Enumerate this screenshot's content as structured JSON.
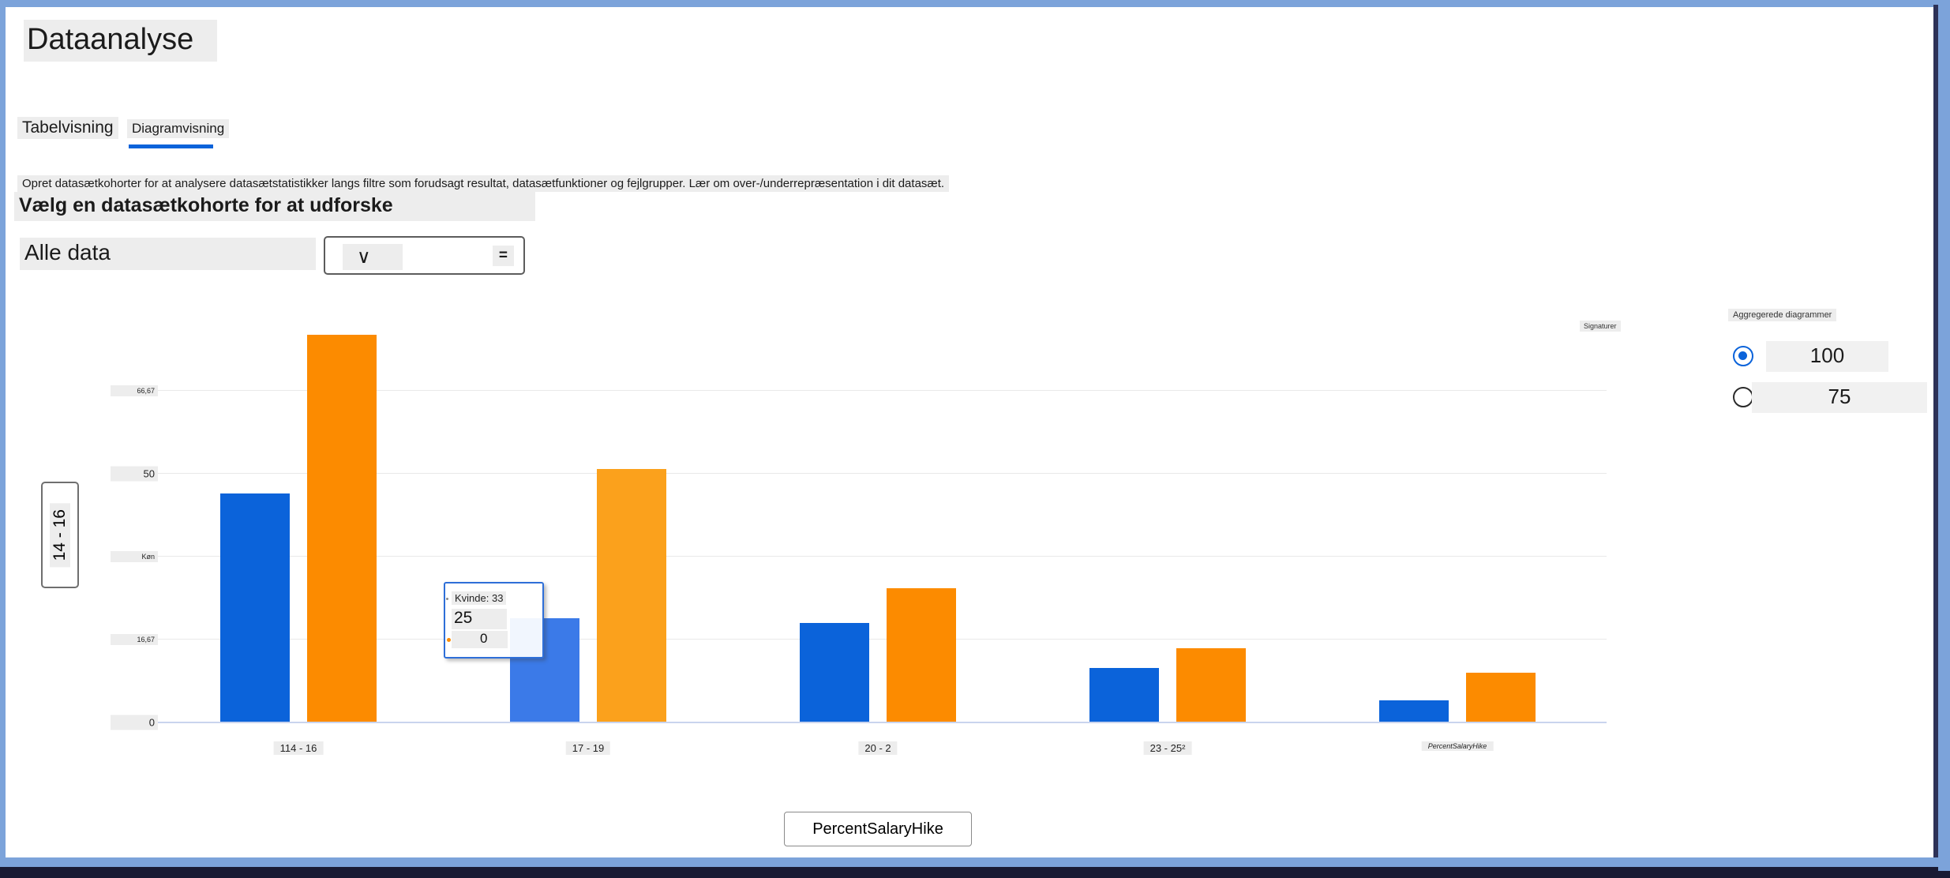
{
  "title": "Dataanalyse",
  "tabs": [
    {
      "label": "Tabelvisning",
      "active": false
    },
    {
      "label": "Diagramvisning",
      "active": true
    }
  ],
  "description": "Opret datasætkohorter for at analysere datasætstatistikker langs filtre som forudsagt resultat, datasætfunktioner og fejlgrupper. Lær om over-/underrepræsentation i dit datasæt.",
  "subtitle": "Vælg en datasætkohorte for at udforske",
  "cohort": {
    "selected": "Alle data",
    "chevron": "∨",
    "filter_icon": "="
  },
  "legend_label": "Signaturer",
  "tooltip": {
    "header": "Kvinde: 33",
    "value": "25",
    "secondary": "0"
  },
  "axis_buttons": {
    "y": "14 - 16",
    "x": "PercentSalaryHike"
  },
  "right_panel": {
    "title": "Aggregerede diagrammer",
    "options": [
      {
        "label": "100",
        "selected": true
      },
      {
        "label": "75",
        "selected": false
      }
    ]
  },
  "chart_data": {
    "type": "bar",
    "categories": [
      "114 - 16",
      "17 - 19",
      "20 - 2",
      "23 - 25²",
      "PercentSalaryHike"
    ],
    "series": [
      {
        "name": "series-blue",
        "color": "#0b63da",
        "hover_color": "#3b7ae8",
        "values": [
          46,
          21,
          20,
          11,
          4.5
        ]
      },
      {
        "name": "series-orange",
        "color": "#fc8b00",
        "hover_color": "#fba11c",
        "values": [
          78,
          51,
          27,
          15,
          10
        ]
      }
    ],
    "yticks": [
      {
        "value": 0,
        "label": "0"
      },
      {
        "value": 16.67,
        "label": "16,67"
      },
      {
        "value": 33.33,
        "label": "Køn"
      },
      {
        "value": 50,
        "label": "50"
      },
      {
        "value": 66.67,
        "label": "66,67"
      }
    ],
    "ylim": [
      0,
      79.4
    ],
    "grid": true,
    "legend_position": "top-right",
    "hover_group_index": 1
  }
}
